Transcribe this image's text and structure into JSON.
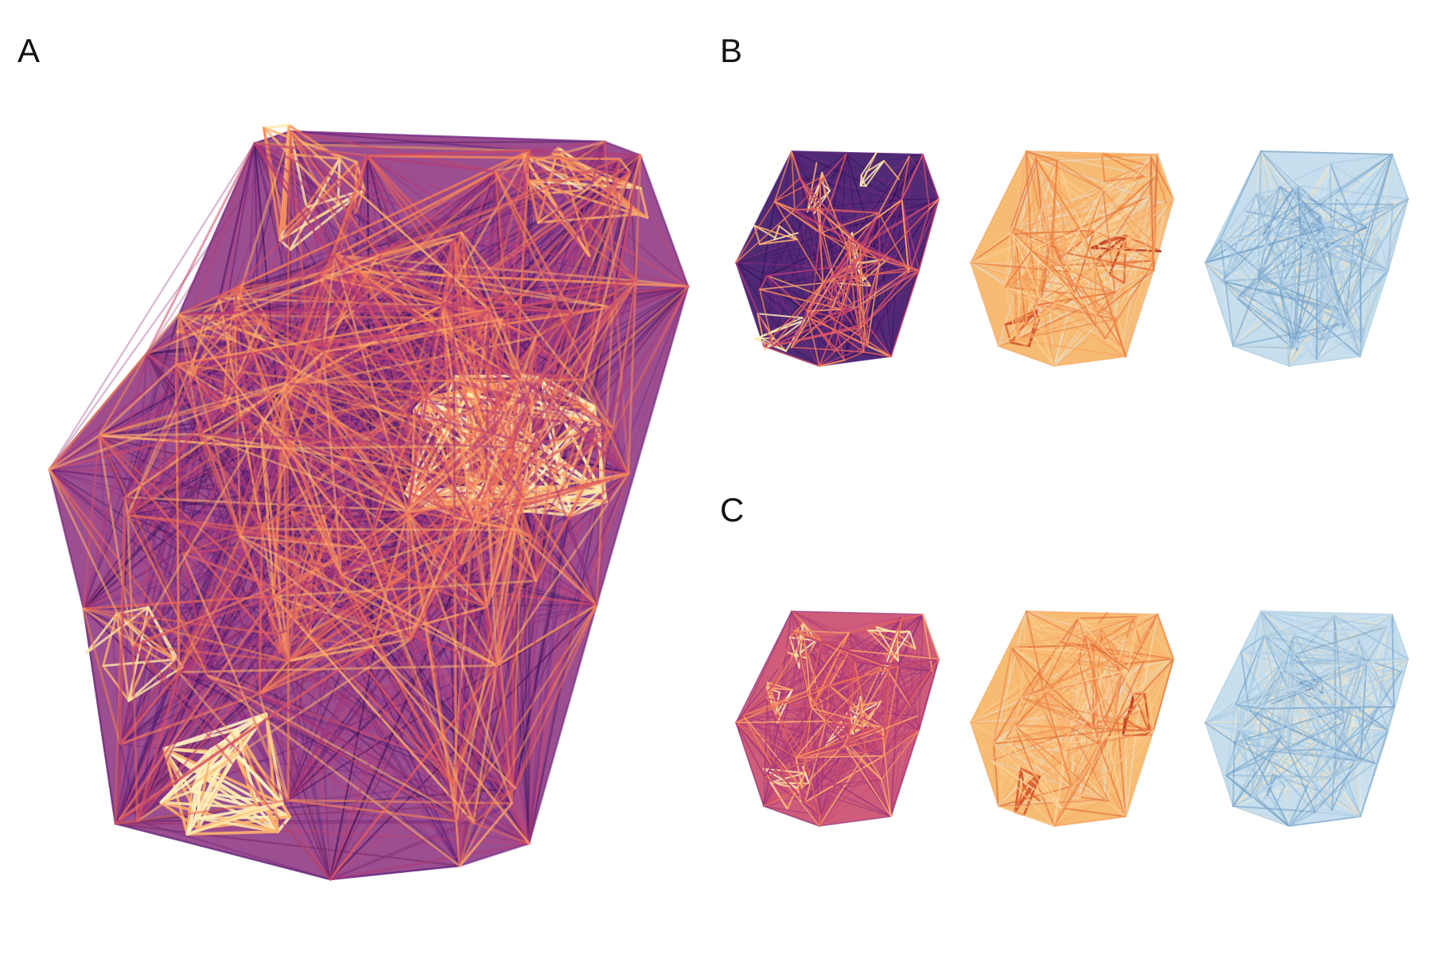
{
  "figure": {
    "panels": [
      {
        "label": "A"
      },
      {
        "label": "B"
      },
      {
        "label": "C"
      }
    ]
  },
  "palettes": {
    "magma": [
      "#2a0f4f",
      "#4a1a74",
      "#6a2580",
      "#8b2f7f",
      "#b03b78",
      "#d24d6a",
      "#ea6a5a",
      "#f68b5a",
      "#fdb26e",
      "#fde6a5",
      "#fff2c0"
    ],
    "oranges": [
      "#f9e4b7",
      "#fbd49a",
      "#f9bb73",
      "#f6a05a",
      "#ef8447",
      "#e36a36",
      "#cf4d28",
      "#b8361c"
    ],
    "blues": [
      "#fbe3b8",
      "#dbecf4",
      "#c3dcec",
      "#a7c9e1",
      "#8fb7d7",
      "#6f9fc9",
      "#4a7fb7",
      "#2d5f99"
    ]
  }
}
